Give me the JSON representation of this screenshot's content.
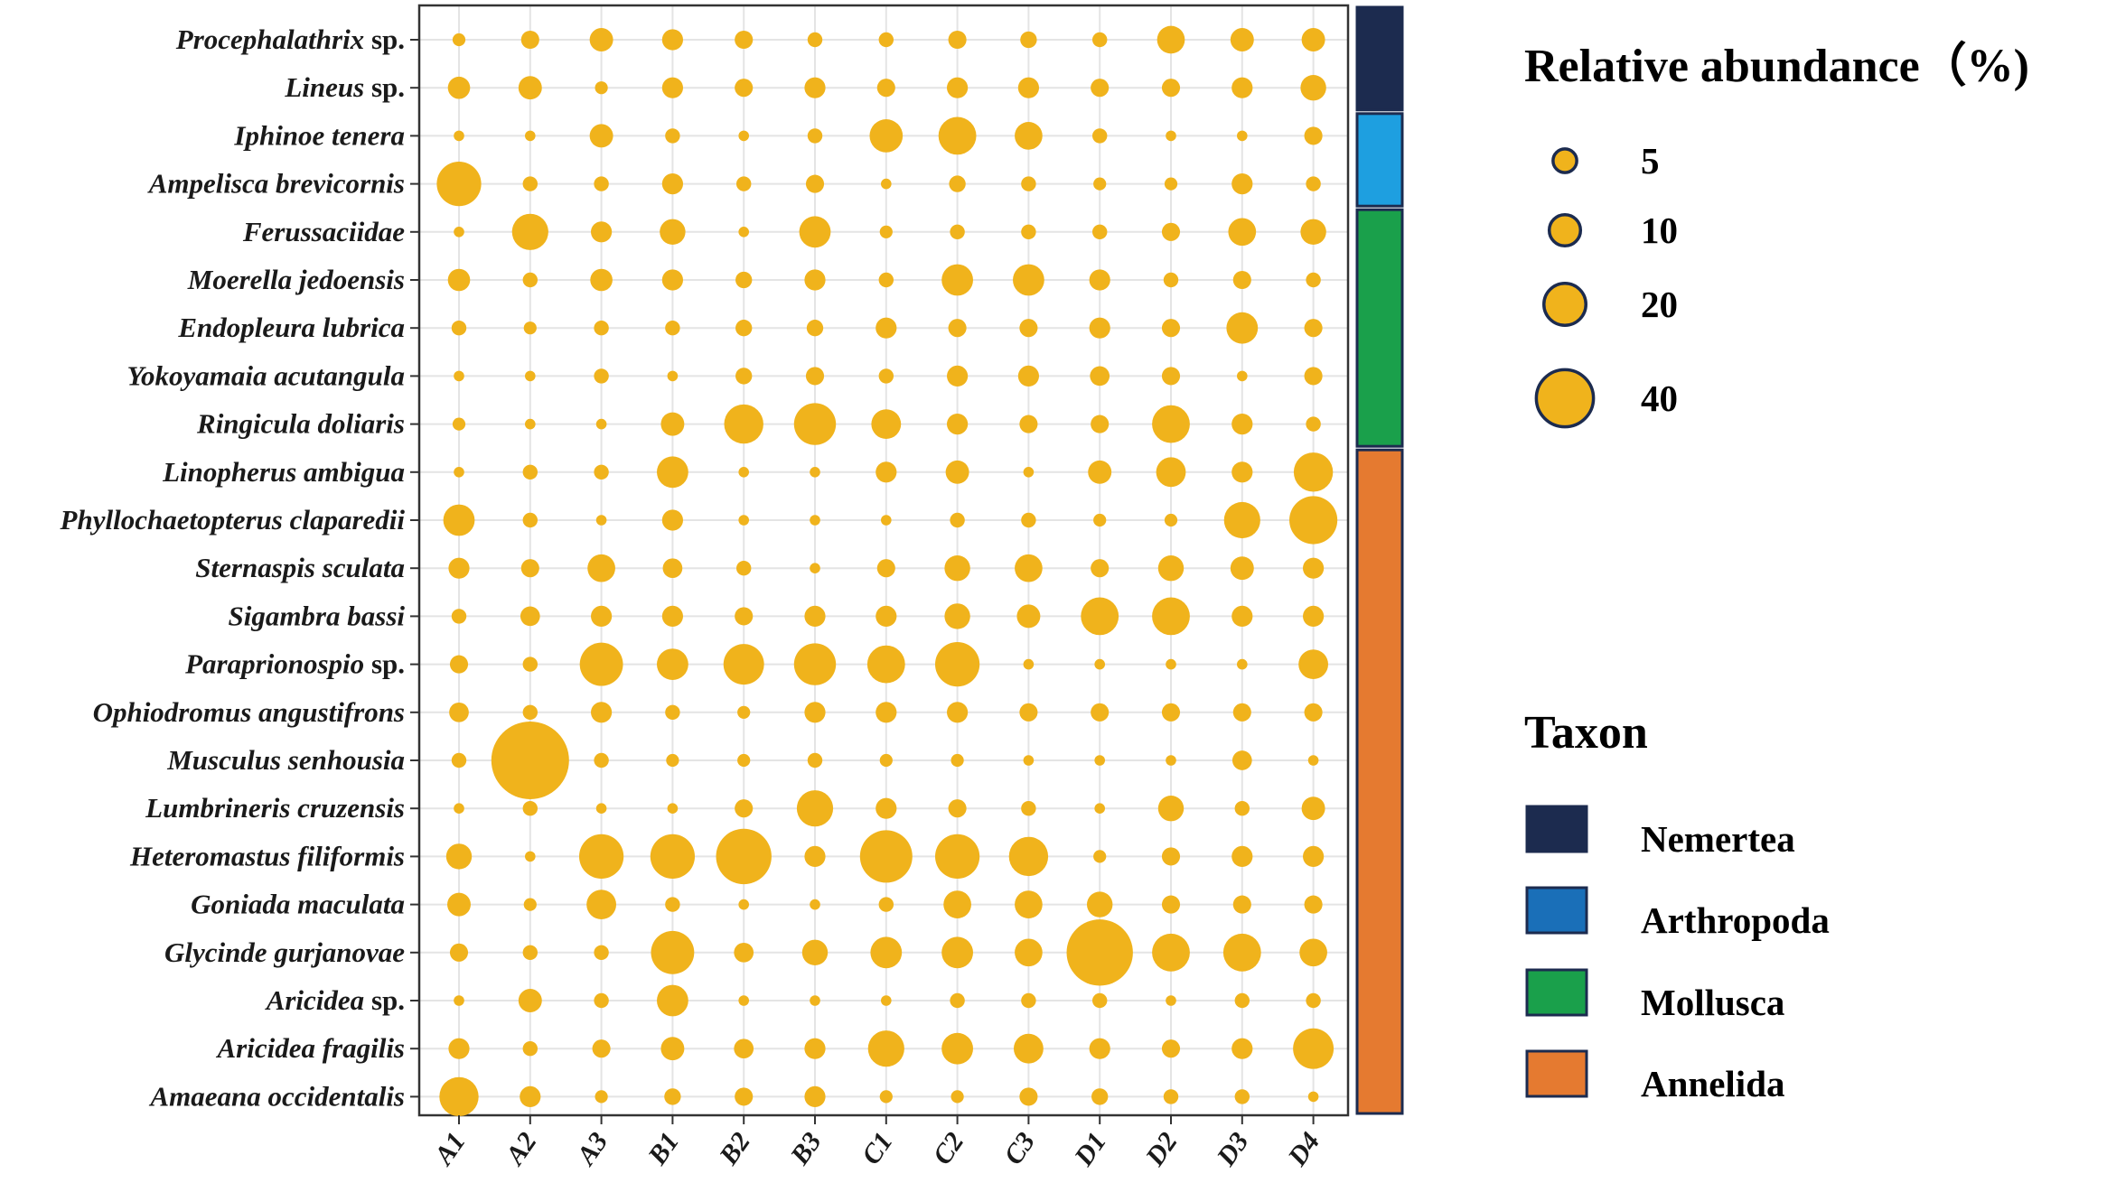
{
  "colors": {
    "bubble": "#f0b31c",
    "bubble_stroke": "#1c2b4f",
    "grid": "#e4e4e4",
    "axis": "#333333",
    "Nemertea": "#1c2b4f",
    "Arthropoda": "#1e9fe0",
    "Arthropoda_legend": "#1a6fb8",
    "Mollusca": "#1aa04b",
    "Annelida": "#e57a30"
  },
  "chart_data": {
    "type": "bubble-matrix",
    "title": "",
    "xlabel": "",
    "ylabel": "",
    "x_categories": [
      "A1",
      "A2",
      "A3",
      "B1",
      "B2",
      "B3",
      "C1",
      "C2",
      "C3",
      "D1",
      "D2",
      "D3",
      "D4"
    ],
    "species": [
      {
        "genus": "Procephalathrix",
        "suffix": "sp.",
        "taxon": "Nemertea"
      },
      {
        "genus": "Lineus",
        "suffix": "sp.",
        "taxon": "Nemertea"
      },
      {
        "genus": "Iphinoe tenera",
        "suffix": "",
        "taxon": "Arthropoda"
      },
      {
        "genus": "Ampelisca brevicornis",
        "suffix": "",
        "taxon": "Arthropoda"
      },
      {
        "genus": "Ferussaciidae",
        "suffix": "",
        "taxon": "Mollusca"
      },
      {
        "genus": "Moerella jedoensis",
        "suffix": "",
        "taxon": "Mollusca"
      },
      {
        "genus": "Endopleura lubrica",
        "suffix": "",
        "taxon": "Mollusca"
      },
      {
        "genus": "Yokoyamaia acutangula",
        "suffix": "",
        "taxon": "Mollusca"
      },
      {
        "genus": "Ringicula doliaris",
        "suffix": "",
        "taxon": "Mollusca"
      },
      {
        "genus": "Linopherus ambigua",
        "suffix": "",
        "taxon": "Annelida"
      },
      {
        "genus": "Phyllochaetopterus claparedii",
        "suffix": "",
        "taxon": "Annelida"
      },
      {
        "genus": "Sternaspis sculata",
        "suffix": "",
        "taxon": "Annelida"
      },
      {
        "genus": "Sigambra bassi",
        "suffix": "",
        "taxon": "Annelida"
      },
      {
        "genus": "Paraprionospio",
        "suffix": "sp.",
        "taxon": "Annelida"
      },
      {
        "genus": "Ophiodromus angustifrons",
        "suffix": "",
        "taxon": "Annelida"
      },
      {
        "genus": "Musculus senhousia",
        "suffix": "",
        "taxon": "Annelida"
      },
      {
        "genus": "Lumbrineris cruzensis",
        "suffix": "",
        "taxon": "Annelida"
      },
      {
        "genus": "Heteromastus filiformis",
        "suffix": "",
        "taxon": "Annelida"
      },
      {
        "genus": "Goniada maculata",
        "suffix": "",
        "taxon": "Annelida"
      },
      {
        "genus": "Glycinde gurjanovae",
        "suffix": "",
        "taxon": "Annelida"
      },
      {
        "genus": "Aricidea",
        "suffix": "sp.",
        "taxon": "Annelida"
      },
      {
        "genus": "Aricidea fragilis",
        "suffix": "",
        "taxon": "Annelida"
      },
      {
        "genus": "Amaeana occidentalis",
        "suffix": "",
        "taxon": "Annelida"
      }
    ],
    "values": [
      [
        1.5,
        3,
        5,
        4,
        3,
        2,
        2,
        3,
        2.5,
        2,
        7,
        5,
        5
      ],
      [
        4.5,
        5,
        1.5,
        4,
        3,
        4,
        3,
        4,
        4,
        3,
        3,
        4,
        6
      ],
      [
        1,
        1,
        5,
        2,
        1,
        2,
        10,
        13,
        7,
        2,
        1,
        1,
        3
      ],
      [
        18,
        2,
        2,
        4,
        2,
        3,
        1,
        2.5,
        2,
        1.5,
        1.5,
        4,
        2
      ],
      [
        1,
        12,
        4,
        6,
        1,
        9,
        1.5,
        2,
        2,
        2,
        3,
        7,
        6
      ],
      [
        4.5,
        2,
        4.5,
        4,
        2.5,
        4,
        2,
        9,
        9,
        4,
        2,
        3,
        2
      ],
      [
        2,
        1.5,
        2,
        2,
        2.5,
        2.5,
        4,
        3,
        3,
        4,
        3,
        9,
        3
      ],
      [
        1,
        1,
        2,
        1,
        2.5,
        3,
        2,
        4,
        4,
        3.5,
        3,
        1,
        3
      ],
      [
        1.5,
        1,
        1,
        5,
        14,
        16,
        8,
        4,
        3,
        3,
        13,
        4,
        2
      ],
      [
        1,
        2,
        2,
        9,
        1,
        1,
        4,
        5,
        1,
        5,
        8,
        4,
        14
      ],
      [
        9,
        2,
        1,
        4,
        1,
        1,
        1,
        2,
        2,
        1.5,
        1.5,
        12,
        21
      ],
      [
        4,
        3,
        7,
        3.5,
        2,
        1,
        3,
        6,
        7,
        3,
        6,
        5,
        4
      ],
      [
        2,
        3.5,
        4,
        4,
        3,
        4,
        4,
        6,
        5,
        13,
        13,
        4,
        4
      ],
      [
        3,
        2,
        17,
        9,
        15,
        16,
        13,
        18,
        1,
        1,
        1,
        1,
        8
      ],
      [
        3.5,
        2,
        4,
        2,
        1.5,
        4,
        4,
        4,
        3,
        3,
        3,
        3,
        3
      ],
      [
        2,
        55,
        2,
        1.5,
        1.5,
        2,
        1.5,
        1.5,
        1,
        1,
        1,
        3.5,
        1
      ],
      [
        1,
        2,
        1,
        1,
        3,
        12,
        4,
        3,
        2,
        1,
        6,
        2,
        5
      ],
      [
        6,
        1,
        18,
        18,
        28,
        4,
        25,
        18,
        14,
        1.5,
        3,
        4,
        4
      ],
      [
        5,
        1.5,
        8,
        2,
        1,
        1,
        2,
        7,
        7,
        6,
        3,
        3,
        3
      ],
      [
        3,
        2,
        2,
        17,
        3.5,
        6,
        9,
        9,
        7,
        40,
        13,
        13,
        7
      ],
      [
        1,
        5,
        2,
        9,
        1,
        1,
        1,
        2,
        2,
        2,
        1,
        2,
        2
      ],
      [
        4,
        2,
        3,
        5,
        3.5,
        4,
        12,
        9,
        8,
        4,
        3,
        4,
        15
      ],
      [
        14,
        4,
        1.5,
        2.5,
        3,
        4,
        1.5,
        1.5,
        3,
        2.5,
        2,
        2,
        1
      ]
    ],
    "size_legend": {
      "title": "Relative abundance（%)",
      "values": [
        5,
        10,
        20,
        40
      ]
    },
    "taxon_legend": {
      "title": "Taxon",
      "entries": [
        "Nemertea",
        "Arthropoda",
        "Mollusca",
        "Annelida"
      ]
    }
  }
}
